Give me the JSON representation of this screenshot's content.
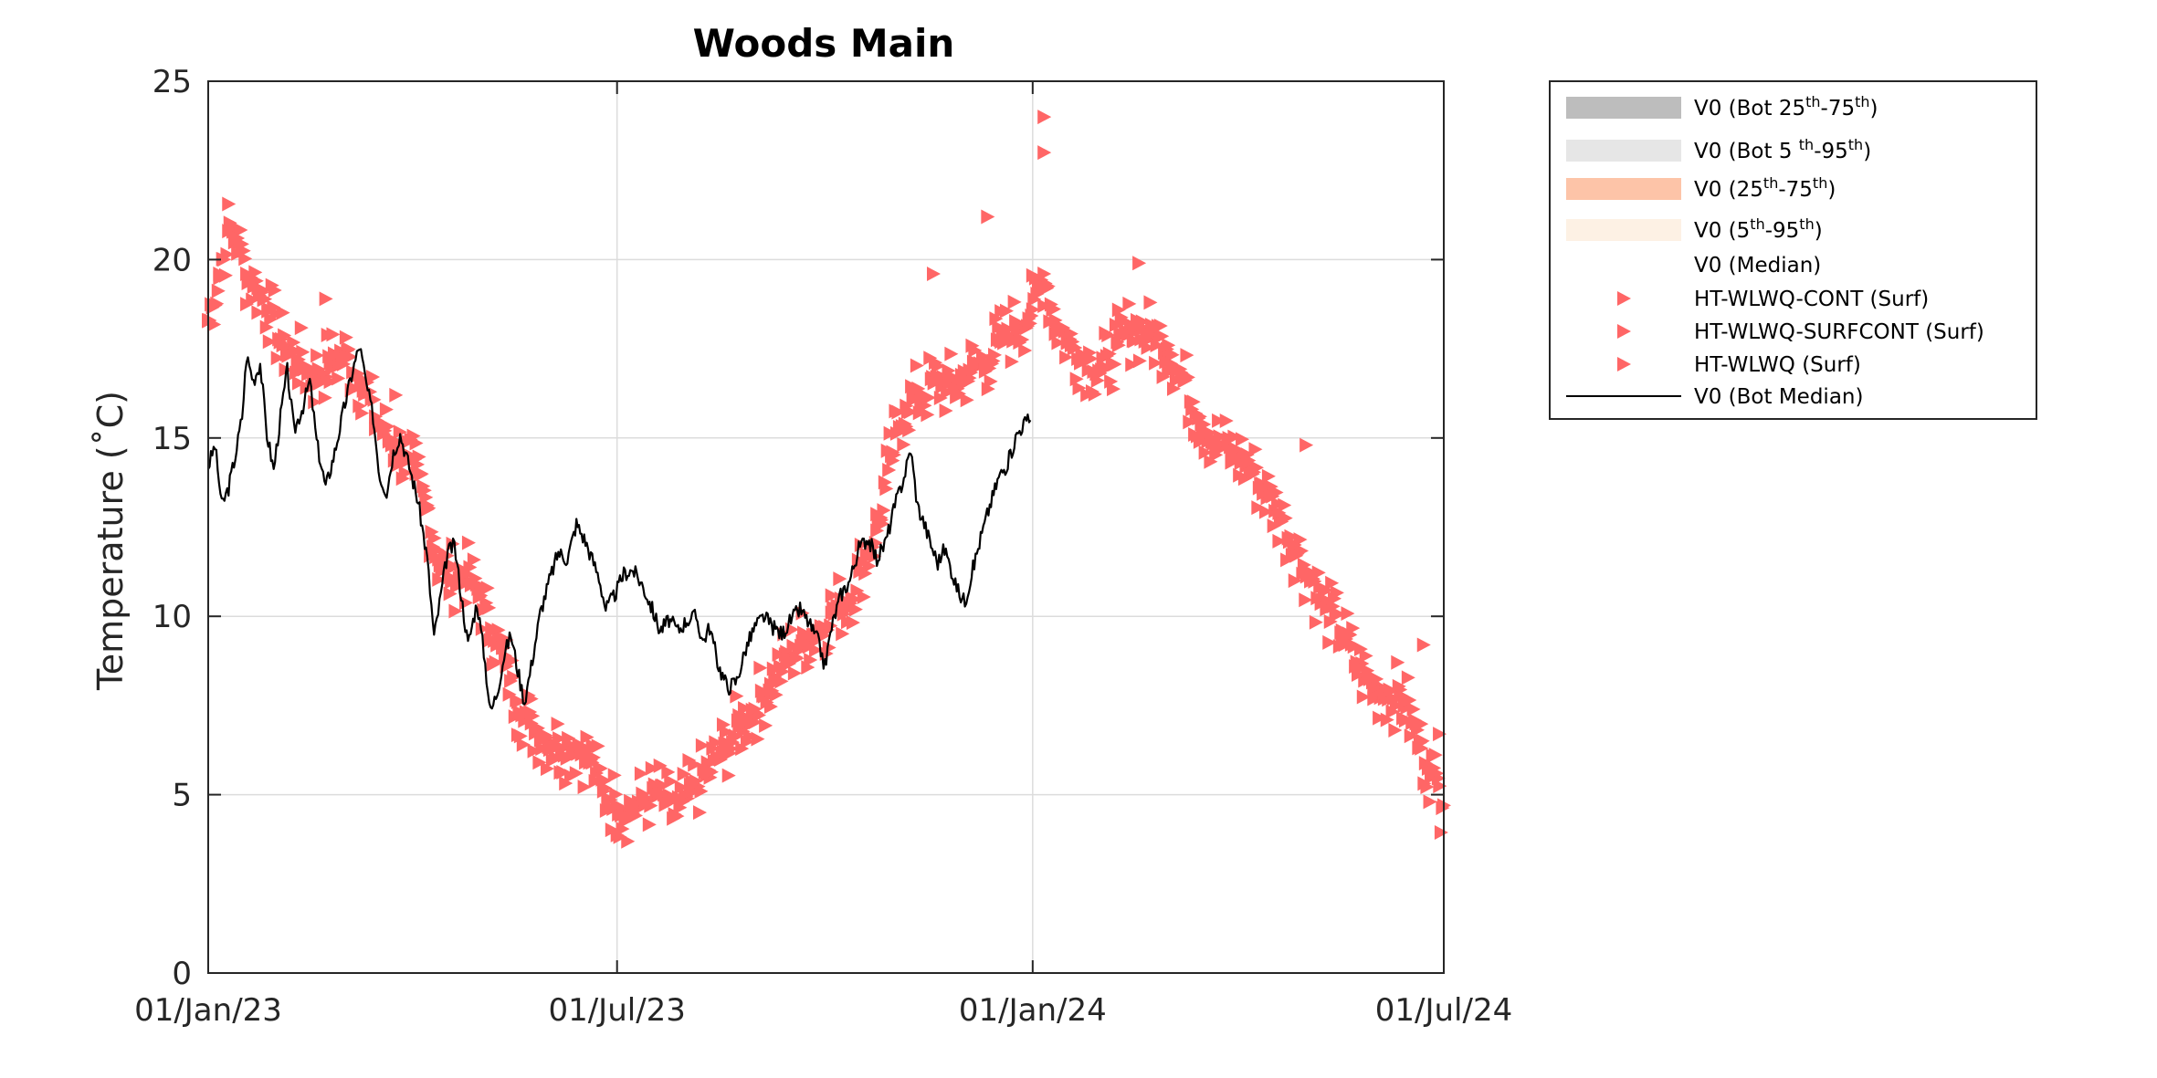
{
  "chart_data": {
    "type": "line",
    "title": "Woods Main",
    "xlabel": "",
    "ylabel": "Temperature (˚C)",
    "x_range": [
      "2023-01-01",
      "2024-07-01"
    ],
    "ylim": [
      0,
      25
    ],
    "x_ticks": [
      {
        "date": "2023-01-01",
        "label": "01/Jan/23"
      },
      {
        "date": "2023-07-01",
        "label": "01/Jul/23"
      },
      {
        "date": "2024-01-01",
        "label": "01/Jan/24"
      },
      {
        "date": "2024-07-01",
        "label": "01/Jul/24"
      }
    ],
    "y_ticks": [
      0,
      5,
      10,
      15,
      20,
      25
    ],
    "grid": true,
    "legend": {
      "position": "outside-right",
      "entries": [
        {
          "base": "V0 (Bot 25",
          "sup1": "th",
          "mid": "-75",
          "sup2": "th",
          "end": ")",
          "symbol": "band",
          "color": "#bdbdbd"
        },
        {
          "base": "V0 (Bot 5 ",
          "sup1": "th",
          "mid": "-95",
          "sup2": "th",
          "end": ")",
          "symbol": "band",
          "color": "#e6e6e6"
        },
        {
          "base": "V0 (25",
          "sup1": "th",
          "mid": "-75",
          "sup2": "th",
          "end": ")",
          "symbol": "band",
          "color": "#fdc4a8"
        },
        {
          "base": "V0 (5",
          "sup1": "th",
          "mid": "-95",
          "sup2": "th",
          "end": ")",
          "symbol": "band",
          "color": "#fdf1e4"
        },
        {
          "base": "V0 (Median)",
          "symbol": "none",
          "color": "#ffffff"
        },
        {
          "base": "HT-WLWQ-CONT (Surf)",
          "symbol": "triangle",
          "color": "#ff6666"
        },
        {
          "base": "HT-WLWQ-SURFCONT (Surf)",
          "symbol": "triangle",
          "color": "#ff6666"
        },
        {
          "base": "HT-WLWQ (Surf)",
          "symbol": "triangle",
          "color": "#ff6666"
        },
        {
          "base": "V0 (Bot Median)",
          "symbol": "line",
          "color": "#000000"
        }
      ]
    },
    "series": [
      {
        "name": "HT-WLWQ (Surf)",
        "marker": "triangle-right",
        "color": "#ff6666",
        "spread": 1.0,
        "points": [
          [
            "2023-01-01",
            18.3
          ],
          [
            "2023-01-06",
            19.6
          ],
          [
            "2023-01-10",
            20.8
          ],
          [
            "2023-01-14",
            20.6
          ],
          [
            "2023-01-18",
            19.6
          ],
          [
            "2023-01-23",
            19.2
          ],
          [
            "2023-01-28",
            18.6
          ],
          [
            "2023-02-03",
            17.6
          ],
          [
            "2023-02-10",
            17.2
          ],
          [
            "2023-02-17",
            16.7
          ],
          [
            "2023-02-24",
            17.1
          ],
          [
            "2023-03-03",
            17.3
          ],
          [
            "2023-03-10",
            16.6
          ],
          [
            "2023-03-16",
            15.6
          ],
          [
            "2023-03-22",
            15.0
          ],
          [
            "2023-03-28",
            14.6
          ],
          [
            "2023-04-03",
            14.0
          ],
          [
            "2023-04-08",
            13.0
          ],
          [
            "2023-04-13",
            11.6
          ],
          [
            "2023-04-18",
            11.1
          ],
          [
            "2023-04-25",
            11.2
          ],
          [
            "2023-05-01",
            10.6
          ],
          [
            "2023-05-07",
            9.6
          ],
          [
            "2023-05-13",
            8.6
          ],
          [
            "2023-05-18",
            7.6
          ],
          [
            "2023-05-24",
            7.0
          ],
          [
            "2023-05-31",
            6.6
          ],
          [
            "2023-06-07",
            6.3
          ],
          [
            "2023-06-14",
            6.4
          ],
          [
            "2023-06-20",
            5.9
          ],
          [
            "2023-06-25",
            5.1
          ],
          [
            "2023-07-01",
            4.7
          ],
          [
            "2023-07-08",
            4.6
          ],
          [
            "2023-07-14",
            4.9
          ],
          [
            "2023-07-20",
            5.0
          ],
          [
            "2023-07-27",
            4.4
          ],
          [
            "2023-08-03",
            5.1
          ],
          [
            "2023-08-10",
            5.6
          ],
          [
            "2023-08-17",
            6.2
          ],
          [
            "2023-08-24",
            6.9
          ],
          [
            "2023-08-31",
            7.4
          ],
          [
            "2023-09-07",
            8.1
          ],
          [
            "2023-09-14",
            8.8
          ],
          [
            "2023-09-21",
            9.3
          ],
          [
            "2023-09-28",
            9.6
          ],
          [
            "2023-10-04",
            10.1
          ],
          [
            "2023-10-11",
            10.4
          ],
          [
            "2023-10-17",
            11.3
          ],
          [
            "2023-10-24",
            12.4
          ],
          [
            "2023-10-31",
            14.6
          ],
          [
            "2023-11-06",
            15.9
          ],
          [
            "2023-11-13",
            16.2
          ],
          [
            "2023-11-20",
            16.6
          ],
          [
            "2023-11-27",
            16.4
          ],
          [
            "2023-12-04",
            16.9
          ],
          [
            "2023-12-11",
            17.1
          ],
          [
            "2023-12-18",
            17.7
          ],
          [
            "2023-12-25",
            18.1
          ],
          [
            "2024-01-01",
            18.6
          ],
          [
            "2024-01-06",
            19.6
          ],
          [
            "2024-01-11",
            18.3
          ],
          [
            "2024-01-18",
            17.6
          ],
          [
            "2024-01-25",
            17.2
          ],
          [
            "2024-02-01",
            16.9
          ],
          [
            "2024-02-08",
            17.6
          ],
          [
            "2024-02-15",
            18.1
          ],
          [
            "2024-02-22",
            17.9
          ],
          [
            "2024-03-01",
            17.6
          ],
          [
            "2024-03-08",
            16.6
          ],
          [
            "2024-03-15",
            15.6
          ],
          [
            "2024-03-22",
            14.9
          ],
          [
            "2024-03-29",
            14.6
          ],
          [
            "2024-04-05",
            14.3
          ],
          [
            "2024-04-12",
            13.6
          ],
          [
            "2024-04-19",
            12.9
          ],
          [
            "2024-04-26",
            12.0
          ],
          [
            "2024-05-03",
            11.1
          ],
          [
            "2024-05-10",
            10.2
          ],
          [
            "2024-05-17",
            9.6
          ],
          [
            "2024-05-24",
            8.6
          ],
          [
            "2024-05-31",
            8.0
          ],
          [
            "2024-06-07",
            7.9
          ],
          [
            "2024-06-14",
            7.6
          ],
          [
            "2024-06-21",
            6.3
          ],
          [
            "2024-06-26",
            5.6
          ],
          [
            "2024-07-01",
            4.7
          ]
        ],
        "outliers": [
          [
            "2024-01-06",
            24.0
          ],
          [
            "2024-01-06",
            23.0
          ],
          [
            "2023-12-12",
            21.2
          ],
          [
            "2023-11-18",
            19.6
          ],
          [
            "2024-02-17",
            19.9
          ],
          [
            "2024-05-01",
            14.8
          ],
          [
            "2024-06-22",
            9.2
          ],
          [
            "2024-06-29",
            6.7
          ],
          [
            "2023-10-26",
            12.7
          ],
          [
            "2023-03-25",
            16.2
          ],
          [
            "2023-02-22",
            18.9
          ]
        ]
      },
      {
        "name": "V0 (Bot Median)",
        "marker": "line",
        "color": "#000000",
        "points": [
          [
            "2023-01-01",
            14.2
          ],
          [
            "2023-01-04",
            14.8
          ],
          [
            "2023-01-07",
            13.1
          ],
          [
            "2023-01-10",
            13.6
          ],
          [
            "2023-01-13",
            14.5
          ],
          [
            "2023-01-16",
            15.6
          ],
          [
            "2023-01-18",
            17.3
          ],
          [
            "2023-01-21",
            16.6
          ],
          [
            "2023-01-24",
            17.1
          ],
          [
            "2023-01-27",
            15.1
          ],
          [
            "2023-01-30",
            14.1
          ],
          [
            "2023-02-02",
            15.6
          ],
          [
            "2023-02-05",
            16.9
          ],
          [
            "2023-02-08",
            15.2
          ],
          [
            "2023-02-12",
            15.9
          ],
          [
            "2023-02-15",
            16.6
          ],
          [
            "2023-02-18",
            14.9
          ],
          [
            "2023-02-22",
            13.6
          ],
          [
            "2023-02-26",
            14.6
          ],
          [
            "2023-03-02",
            15.8
          ],
          [
            "2023-03-06",
            16.9
          ],
          [
            "2023-03-09",
            17.6
          ],
          [
            "2023-03-12",
            16.5
          ],
          [
            "2023-03-15",
            15.6
          ],
          [
            "2023-03-18",
            13.9
          ],
          [
            "2023-03-21",
            13.5
          ],
          [
            "2023-03-24",
            14.6
          ],
          [
            "2023-03-27",
            15.1
          ],
          [
            "2023-03-31",
            14.2
          ],
          [
            "2023-04-04",
            13.2
          ],
          [
            "2023-04-08",
            11.6
          ],
          [
            "2023-04-11",
            9.4
          ],
          [
            "2023-04-14",
            10.6
          ],
          [
            "2023-04-17",
            11.8
          ],
          [
            "2023-04-20",
            12.0
          ],
          [
            "2023-04-23",
            10.6
          ],
          [
            "2023-04-26",
            9.2
          ],
          [
            "2023-04-30",
            10.4
          ],
          [
            "2023-05-03",
            9.0
          ],
          [
            "2023-05-06",
            7.3
          ],
          [
            "2023-05-09",
            7.9
          ],
          [
            "2023-05-12",
            8.9
          ],
          [
            "2023-05-15",
            9.5
          ],
          [
            "2023-05-18",
            8.5
          ],
          [
            "2023-05-21",
            7.6
          ],
          [
            "2023-05-24",
            8.6
          ],
          [
            "2023-05-28",
            10.1
          ],
          [
            "2023-06-01",
            11.0
          ],
          [
            "2023-06-05",
            11.8
          ],
          [
            "2023-06-09",
            11.6
          ],
          [
            "2023-06-13",
            12.6
          ],
          [
            "2023-06-17",
            12.1
          ],
          [
            "2023-06-20",
            11.6
          ],
          [
            "2023-06-23",
            11.1
          ],
          [
            "2023-06-26",
            10.2
          ],
          [
            "2023-06-30",
            10.6
          ],
          [
            "2023-07-04",
            11.2
          ],
          [
            "2023-07-08",
            11.3
          ],
          [
            "2023-07-12",
            10.9
          ],
          [
            "2023-07-16",
            10.3
          ],
          [
            "2023-07-20",
            9.6
          ],
          [
            "2023-07-24",
            9.9
          ],
          [
            "2023-07-28",
            9.6
          ],
          [
            "2023-08-01",
            9.9
          ],
          [
            "2023-08-05",
            10.0
          ],
          [
            "2023-08-08",
            9.3
          ],
          [
            "2023-08-11",
            9.7
          ],
          [
            "2023-08-15",
            8.6
          ],
          [
            "2023-08-19",
            8.0
          ],
          [
            "2023-08-23",
            8.2
          ],
          [
            "2023-08-27",
            9.1
          ],
          [
            "2023-08-31",
            9.7
          ],
          [
            "2023-09-04",
            10.0
          ],
          [
            "2023-09-08",
            9.7
          ],
          [
            "2023-09-12",
            9.5
          ],
          [
            "2023-09-16",
            9.9
          ],
          [
            "2023-09-20",
            10.2
          ],
          [
            "2023-09-24",
            9.8
          ],
          [
            "2023-09-28",
            9.3
          ],
          [
            "2023-10-01",
            8.6
          ],
          [
            "2023-10-04",
            9.7
          ],
          [
            "2023-10-08",
            10.6
          ],
          [
            "2023-10-12",
            11.0
          ],
          [
            "2023-10-16",
            11.9
          ],
          [
            "2023-10-20",
            12.2
          ],
          [
            "2023-10-24",
            11.6
          ],
          [
            "2023-10-28",
            12.1
          ],
          [
            "2023-11-01",
            13.1
          ],
          [
            "2023-11-05",
            13.9
          ],
          [
            "2023-11-08",
            14.7
          ],
          [
            "2023-11-11",
            13.1
          ],
          [
            "2023-11-14",
            12.6
          ],
          [
            "2023-11-17",
            12.0
          ],
          [
            "2023-11-20",
            11.5
          ],
          [
            "2023-11-23",
            11.9
          ],
          [
            "2023-11-26",
            11.3
          ],
          [
            "2023-11-29",
            10.7
          ],
          [
            "2023-12-02",
            10.4
          ],
          [
            "2023-12-05",
            11.2
          ],
          [
            "2023-12-09",
            12.2
          ],
          [
            "2023-12-13",
            13.1
          ],
          [
            "2023-12-17",
            13.9
          ],
          [
            "2023-12-21",
            14.3
          ],
          [
            "2023-12-25",
            15.1
          ],
          [
            "2023-12-28",
            15.4
          ],
          [
            "2023-12-31",
            15.5
          ]
        ]
      }
    ]
  }
}
